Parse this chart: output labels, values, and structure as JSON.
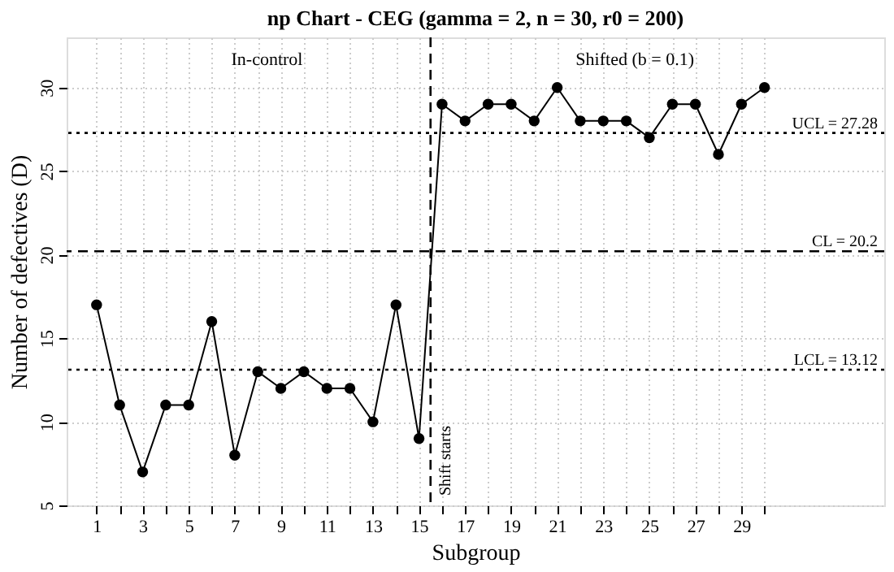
{
  "chart_data": {
    "type": "line",
    "title": "np Chart - CEG (gamma = 2, n = 30, r0 = 200)",
    "xlabel": "Subgroup",
    "ylabel": "Number of defectives (D)",
    "x": [
      1,
      2,
      3,
      4,
      5,
      6,
      7,
      8,
      9,
      10,
      11,
      12,
      13,
      14,
      15,
      16,
      17,
      18,
      19,
      20,
      21,
      22,
      23,
      24,
      25,
      26,
      27,
      28,
      29,
      30
    ],
    "series": [
      {
        "color": "#000000",
        "values": [
          17,
          11,
          7,
          11,
          11,
          16,
          8,
          13,
          12,
          13,
          12,
          12,
          10,
          17,
          9,
          29,
          28,
          29,
          29,
          28,
          30,
          28,
          28,
          28,
          27,
          29,
          29,
          26,
          29,
          30
        ]
      }
    ],
    "xlim": [
      -0.3,
      35.2
    ],
    "xticks": [
      1,
      {
        "value": 2,
        "label": null
      },
      3,
      {
        "value": 4,
        "label": null
      },
      5,
      {
        "value": 6,
        "label": null
      },
      7,
      {
        "value": 8,
        "label": null
      },
      9,
      {
        "value": 10,
        "label": null
      },
      11,
      {
        "value": 12,
        "label": null
      },
      13,
      {
        "value": 14,
        "label": null
      },
      15,
      {
        "value": 16,
        "label": null
      },
      17,
      {
        "value": 18,
        "label": null
      },
      19,
      {
        "value": 20,
        "label": null
      },
      21,
      {
        "value": 22,
        "label": null
      },
      23,
      {
        "value": 24,
        "label": null
      },
      25,
      {
        "value": 26,
        "label": null
      },
      27,
      {
        "value": 28,
        "label": null
      },
      29,
      {
        "value": 30,
        "label": null
      }
    ],
    "ylim": [
      5,
      33
    ],
    "yticks": [
      5,
      10,
      15,
      20,
      25,
      30
    ],
    "ref_lines": [
      {
        "axis": "y",
        "value": 27.28,
        "label": "UCL = 27.28",
        "line_style": "dotted",
        "color": "#000000"
      },
      {
        "axis": "y",
        "value": 20.2,
        "label": "CL = 20.2",
        "line_style": "dashed",
        "color": "#000000"
      },
      {
        "axis": "y",
        "value": 13.12,
        "label": "LCL = 13.12",
        "line_style": "dotted",
        "color": "#000000"
      },
      {
        "axis": "x",
        "value": 15.5,
        "label": "Shift starts",
        "line_style": "dashed",
        "color": "#000000"
      }
    ],
    "annotations": [
      "In-control",
      "Shifted (b = 0.1)"
    ],
    "grid": true,
    "marker": "circle",
    "line_style": "solid"
  }
}
